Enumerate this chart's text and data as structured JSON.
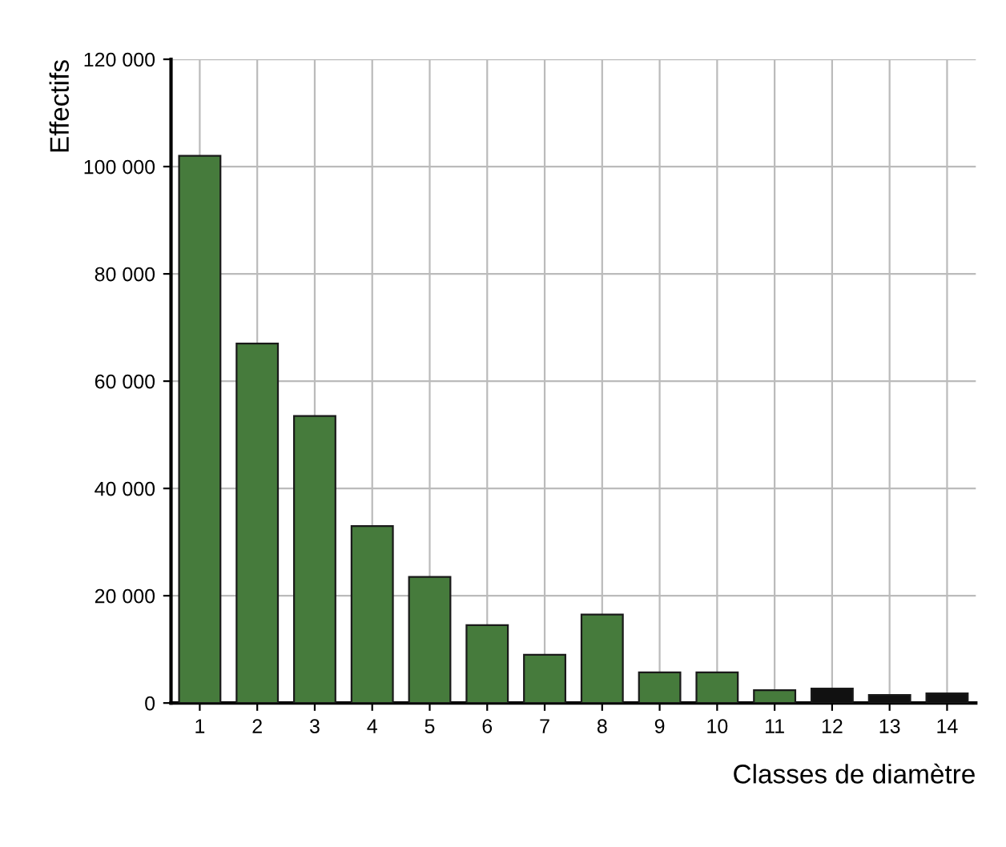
{
  "chart_data": {
    "type": "bar",
    "xlabel": "Classes de diamètre",
    "ylabel": "Effectifs",
    "categories": [
      "1",
      "2",
      "3",
      "4",
      "5",
      "6",
      "7",
      "8",
      "9",
      "10",
      "11",
      "12",
      "13",
      "14"
    ],
    "values": [
      102000,
      67000,
      53500,
      33000,
      23500,
      14500,
      9000,
      16500,
      5700,
      5700,
      2400,
      2700,
      1500,
      1800
    ],
    "colors": [
      "#467b3c",
      "#467b3c",
      "#467b3c",
      "#467b3c",
      "#467b3c",
      "#467b3c",
      "#467b3c",
      "#467b3c",
      "#467b3c",
      "#467b3c",
      "#467b3c",
      "#111111",
      "#111111",
      "#111111"
    ],
    "ylim": [
      0,
      120000
    ],
    "yticks": [
      0,
      {
        "value": 20000,
        "label": "20 000"
      },
      {
        "value": 40000,
        "label": "40 000"
      },
      {
        "value": 60000,
        "label": "60 000"
      },
      {
        "value": 80000,
        "label": "80 000"
      },
      {
        "value": 100000,
        "label": "100 000"
      },
      {
        "value": 120000,
        "label": "120 000"
      }
    ],
    "grid": true
  }
}
